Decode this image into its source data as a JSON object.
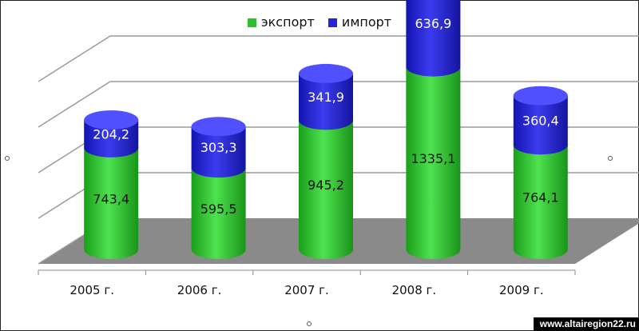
{
  "chart_data": {
    "type": "bar",
    "stacked": true,
    "three_d": true,
    "categories": [
      "2005 г.",
      "2006 г.",
      "2007 г.",
      "2008 г.",
      "2009 г."
    ],
    "series": [
      {
        "name": "экспорт",
        "color": "#2fbf2f",
        "values": [
          743.4,
          595.5,
          945.2,
          1335.1,
          764.1
        ],
        "labels": [
          "743,4",
          "595,5",
          "945,2",
          "1335,1",
          "764,1"
        ]
      },
      {
        "name": "импорт",
        "color": "#2424d8",
        "values": [
          204.2,
          303.3,
          341.9,
          636.9,
          360.4
        ],
        "labels": [
          "204,2",
          "303,3",
          "341,9",
          "636,9",
          "360,4"
        ]
      }
    ],
    "ylim": [
      0,
      2000
    ],
    "grid": true,
    "legend_position": "top"
  },
  "watermark": "www.altairegion22.ru"
}
